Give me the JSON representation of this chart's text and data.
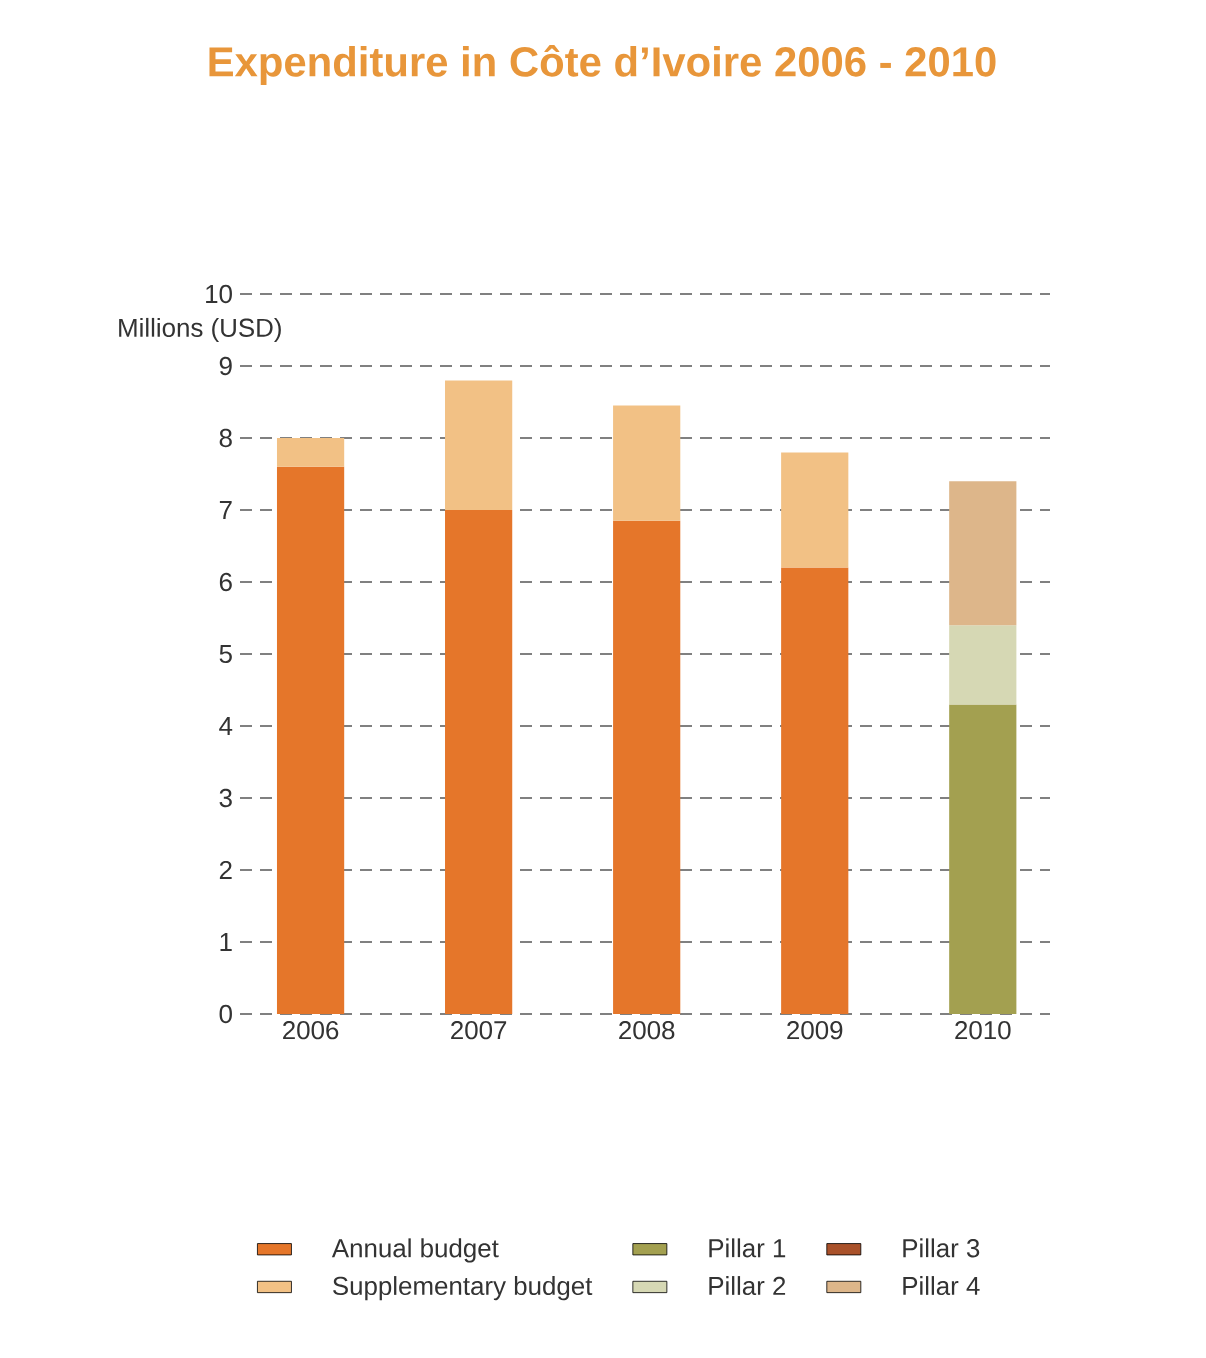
{
  "chart_data": {
    "type": "bar",
    "title": "Expenditure in Côte d’Ivoire 2006 - 2010",
    "ylabel": "Millions (USD)",
    "stacked": true,
    "categories": [
      "2006",
      "2007",
      "2008",
      "2009",
      "2010"
    ],
    "series": [
      {
        "name": "Annual budget",
        "color": "#e5762a",
        "values": [
          7.6,
          7.0,
          6.85,
          6.2,
          null
        ]
      },
      {
        "name": "Supplementary budget",
        "color": "#f2c185",
        "values": [
          0.4,
          1.8,
          1.6,
          1.6,
          null
        ]
      },
      {
        "name": "Pillar 1",
        "color": "#a3a050",
        "values": [
          null,
          null,
          null,
          null,
          4.3
        ]
      },
      {
        "name": "Pillar 2",
        "color": "#d6d8b4",
        "values": [
          null,
          null,
          null,
          null,
          1.1
        ]
      },
      {
        "name": "Pillar 3",
        "color": "#a9512a",
        "values": [
          null,
          null,
          null,
          null,
          null
        ]
      },
      {
        "name": "Pillar 4",
        "color": "#ddb68a",
        "values": [
          null,
          null,
          null,
          null,
          2.0
        ]
      }
    ],
    "ylim": [
      0,
      10
    ],
    "yticks": [
      0,
      1,
      2,
      3,
      4,
      5,
      6,
      7,
      8,
      9,
      10
    ],
    "grid": "y",
    "legend": "bottom"
  }
}
